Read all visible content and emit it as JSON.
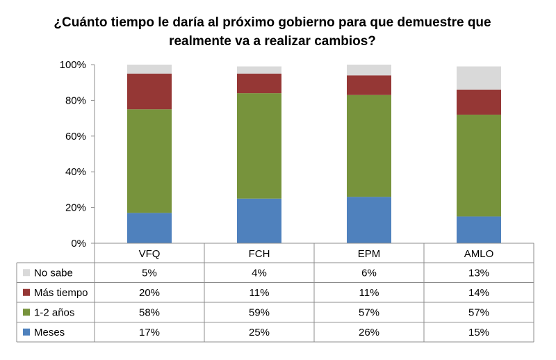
{
  "chart_data": {
    "type": "bar",
    "stacked": true,
    "normalized": true,
    "title": "¿Cuánto tiempo le daría al próximo gobierno para que demuestre que realmente va a realizar cambios?",
    "title_lines": [
      "¿Cuánto tiempo le daría al próximo gobierno para que demuestre que",
      "realmente va a realizar cambios?"
    ],
    "categories": [
      "VFQ",
      "FCH",
      "EPM",
      "AMLO"
    ],
    "ylim": [
      0,
      100
    ],
    "yticks": [
      "0%",
      "20%",
      "40%",
      "60%",
      "80%",
      "100%"
    ],
    "series": [
      {
        "name": "Meses",
        "values": [
          17,
          25,
          26,
          15
        ],
        "labels": [
          "17%",
          "25%",
          "26%",
          "15%"
        ],
        "color": "#4F81BD"
      },
      {
        "name": "1-2 años",
        "values": [
          58,
          59,
          57,
          57
        ],
        "labels": [
          "58%",
          "59%",
          "57%",
          "57%"
        ],
        "color": "#77933C"
      },
      {
        "name": "Más tiempo",
        "values": [
          20,
          11,
          11,
          14
        ],
        "labels": [
          "20%",
          "11%",
          "11%",
          "14%"
        ],
        "color": "#953735"
      },
      {
        "name": "No sabe",
        "values": [
          5,
          4,
          6,
          13
        ],
        "labels": [
          "5%",
          "4%",
          "6%",
          "13%"
        ],
        "color": "#D9D9D9"
      }
    ],
    "table_row_order": [
      "No sabe",
      "Más tiempo",
      "1-2 años",
      "Meses"
    ],
    "legend_placement": "data-table",
    "grid": false
  }
}
